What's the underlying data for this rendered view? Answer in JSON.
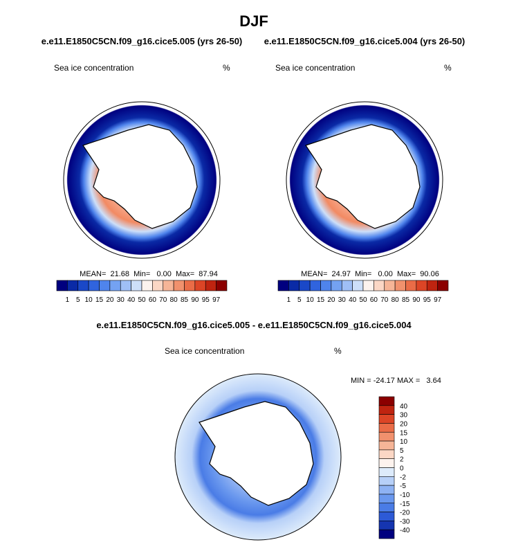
{
  "title": "DJF",
  "panels": [
    {
      "subtitle": "e.e11.E1850C5CN.f09_g16.cice5.005 (yrs 26-50)",
      "label": "Sea ice concentration",
      "units": "%",
      "stats": "MEAN=  21.68  Min=   0.00  Max=  87.94"
    },
    {
      "subtitle": "e.e11.E1850C5CN.f09_g16.cice5.004 (yrs 26-50)",
      "label": "Sea ice concentration",
      "units": "%",
      "stats": "MEAN=  24.97  Min=   0.00  Max=  90.06"
    }
  ],
  "colorbar": {
    "labels": [
      1,
      5,
      10,
      15,
      20,
      30,
      40,
      50,
      60,
      70,
      80,
      85,
      90,
      95,
      97
    ],
    "colors": [
      "#00007f",
      "#0a2aa6",
      "#1a48c8",
      "#3064de",
      "#4f84ec",
      "#74a2f2",
      "#9fbff6",
      "#cddff9",
      "#fdf3ee",
      "#fbd7c5",
      "#f6b597",
      "#f1916d",
      "#ea6c47",
      "#dc4526",
      "#bf2410",
      "#8b0000"
    ]
  },
  "difference": {
    "title": "e.e11.E1850C5CN.f09_g16.cice5.005 - e.e11.E1850C5CN.f09_g16.cice5.004",
    "label": "Sea ice concentration",
    "units": "%",
    "stats": "MIN = -24.17 MAX =   3.64",
    "colorbar": {
      "labels": [
        40,
        30,
        20,
        15,
        10,
        5,
        2,
        0,
        -2,
        -5,
        -10,
        -15,
        -20,
        -30,
        -40
      ],
      "colors": [
        "#8b0000",
        "#bf2410",
        "#dc4526",
        "#ea6c47",
        "#f1916d",
        "#f6b597",
        "#fbd7c5",
        "#fdf3ee",
        "#ddebfb",
        "#b7d0f8",
        "#8eb2f3",
        "#6a98ee",
        "#4a7ce6",
        "#2d5ad6",
        "#1535b0",
        "#00007f"
      ]
    }
  }
}
